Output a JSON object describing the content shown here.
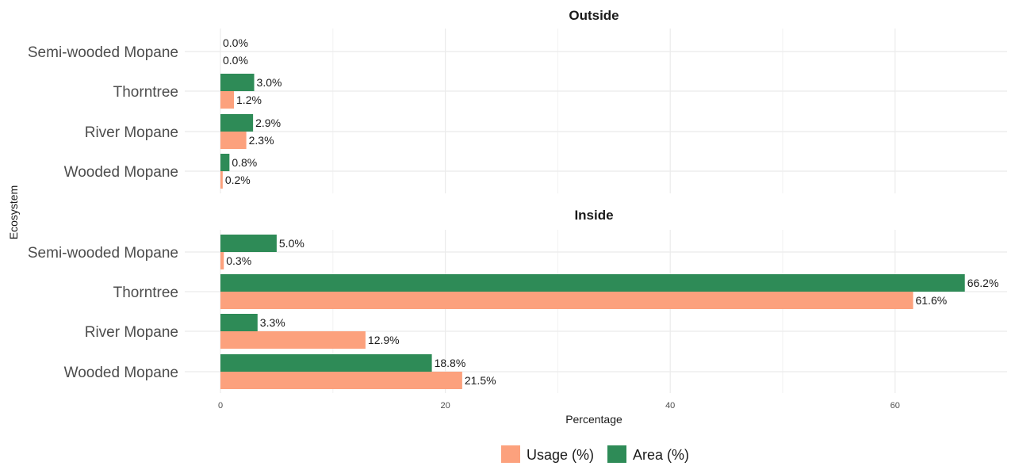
{
  "chart_data": {
    "type": "bar",
    "orientation": "horizontal",
    "xlabel": "Percentage",
    "ylabel": "Ecosystem",
    "xlim": [
      0,
      70
    ],
    "x_ticks": [
      0,
      20,
      40,
      60
    ],
    "grid": true,
    "legend_position": "bottom",
    "categories": [
      "Semi-wooded Mopane",
      "Thorntree",
      "River Mopane",
      "Wooded Mopane"
    ],
    "facets": [
      {
        "title": "Outside",
        "series": [
          {
            "name": "Area (%)",
            "color": "#2e8b57",
            "values": [
              0.0,
              3.0,
              2.9,
              0.8
            ],
            "labels": [
              "0.0%",
              "3.0%",
              "2.9%",
              "0.8%"
            ]
          },
          {
            "name": "Usage (%)",
            "color": "#fca17d",
            "values": [
              0.0,
              1.2,
              2.3,
              0.2
            ],
            "labels": [
              "0.0%",
              "1.2%",
              "2.3%",
              "0.2%"
            ]
          }
        ]
      },
      {
        "title": "Inside",
        "series": [
          {
            "name": "Area (%)",
            "color": "#2e8b57",
            "values": [
              5.0,
              66.2,
              3.3,
              18.8
            ],
            "labels": [
              "5.0%",
              "66.2%",
              "3.3%",
              "18.8%"
            ]
          },
          {
            "name": "Usage (%)",
            "color": "#fca17d",
            "values": [
              0.3,
              61.6,
              12.9,
              21.5
            ],
            "labels": [
              "0.3%",
              "61.6%",
              "12.9%",
              "21.5%"
            ]
          }
        ]
      }
    ],
    "legend": [
      {
        "name": "Usage (%)",
        "color": "#fca17d"
      },
      {
        "name": "Area (%)",
        "color": "#2e8b57"
      }
    ]
  }
}
